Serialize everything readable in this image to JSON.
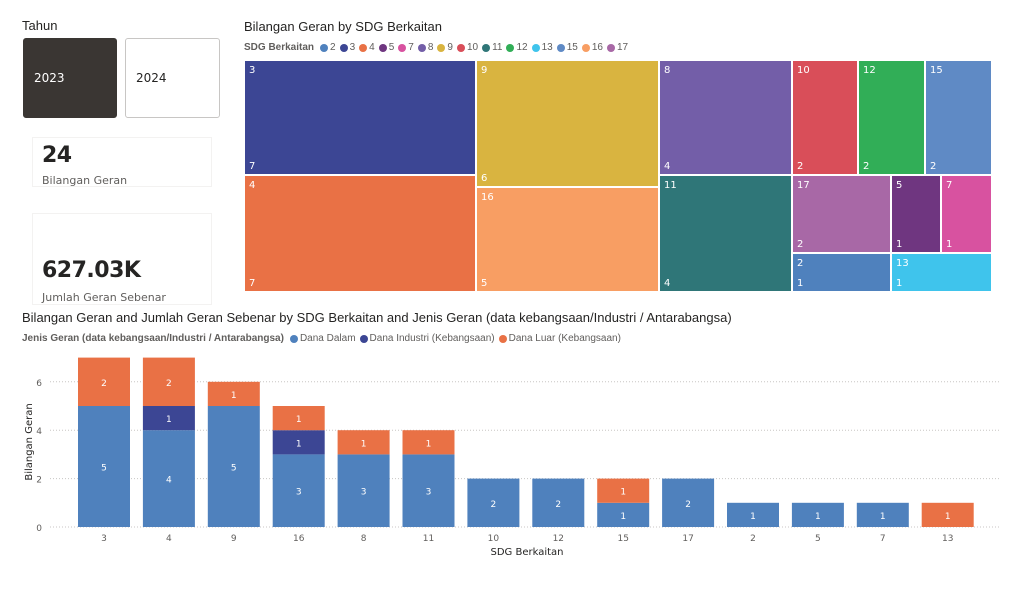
{
  "slicer": {
    "title": "Tahun",
    "options": [
      {
        "label": "2023",
        "selected": true
      },
      {
        "label": "2024",
        "selected": false
      }
    ]
  },
  "cards": [
    {
      "value": "24",
      "label": "Bilangan Geran"
    },
    {
      "value": "627.03K",
      "label": "Jumlah Geran Sebenar"
    }
  ],
  "treemap": {
    "title": "Bilangan Geran by SDG Berkaitan",
    "legend_title": "SDG Berkaitan",
    "legend": [
      {
        "label": "2",
        "color": "#4f81bd"
      },
      {
        "label": "3",
        "color": "#3c4694"
      },
      {
        "label": "4",
        "color": "#e97145"
      },
      {
        "label": "5",
        "color": "#6f3680"
      },
      {
        "label": "7",
        "color": "#d852a0"
      },
      {
        "label": "8",
        "color": "#735ea8"
      },
      {
        "label": "9",
        "color": "#d9b440"
      },
      {
        "label": "10",
        "color": "#d94e59"
      },
      {
        "label": "11",
        "color": "#2f7678"
      },
      {
        "label": "12",
        "color": "#31ae57"
      },
      {
        "label": "13",
        "color": "#3fc4ec"
      },
      {
        "label": "15",
        "color": "#5f8ac5"
      },
      {
        "label": "16",
        "color": "#f89e63"
      },
      {
        "label": "17",
        "color": "#a868a6"
      }
    ],
    "cells": [
      {
        "label": "3",
        "value": "7",
        "color": "#3c4694"
      },
      {
        "label": "4",
        "value": "7",
        "color": "#e97145"
      },
      {
        "label": "9",
        "value": "6",
        "color": "#d9b440"
      },
      {
        "label": "16",
        "value": "5",
        "color": "#f89e63"
      },
      {
        "label": "8",
        "value": "4",
        "color": "#735ea8"
      },
      {
        "label": "11",
        "value": "4",
        "color": "#2f7678"
      },
      {
        "label": "10",
        "value": "2",
        "color": "#d94e59"
      },
      {
        "label": "12",
        "value": "2",
        "color": "#31ae57"
      },
      {
        "label": "15",
        "value": "2",
        "color": "#5f8ac5"
      },
      {
        "label": "17",
        "value": "2",
        "color": "#a868a6"
      },
      {
        "label": "5",
        "value": "1",
        "color": "#6f3680"
      },
      {
        "label": "7",
        "value": "1",
        "color": "#d852a0"
      },
      {
        "label": "2",
        "value": "1",
        "color": "#4f81bd"
      },
      {
        "label": "13",
        "value": "1",
        "color": "#3fc4ec"
      }
    ]
  },
  "chart_data": {
    "type": "bar",
    "stacked": true,
    "title": "Bilangan Geran and Jumlah Geran Sebenar by SDG Berkaitan and Jenis Geran (data kebangsaan/Industri / Antarabangsa)",
    "legend_title": "Jenis Geran (data kebangsaan/Industri / Antarabangsa)",
    "legend_position": "top-left",
    "xlabel": "SDG Berkaitan",
    "ylabel": "Bilangan Geran",
    "ylim": [
      0,
      7
    ],
    "yticks": [
      0,
      2,
      4,
      6
    ],
    "grid": true,
    "categories": [
      "3",
      "4",
      "9",
      "16",
      "8",
      "11",
      "10",
      "12",
      "15",
      "17",
      "2",
      "5",
      "7",
      "13"
    ],
    "series": [
      {
        "name": "Dana Dalam",
        "color": "#4f81bd",
        "values": [
          5,
          4,
          5,
          3,
          3,
          3,
          2,
          2,
          1,
          2,
          1,
          1,
          1,
          0
        ]
      },
      {
        "name": "Dana Industri (Kebangsaan)",
        "color": "#3c4694",
        "values": [
          0,
          1,
          0,
          1,
          0,
          0,
          0,
          0,
          0,
          0,
          0,
          0,
          0,
          0
        ]
      },
      {
        "name": "Dana Luar (Kebangsaan)",
        "color": "#e97145",
        "values": [
          2,
          2,
          1,
          1,
          1,
          1,
          0,
          0,
          1,
          0,
          0,
          0,
          0,
          1
        ]
      }
    ]
  }
}
